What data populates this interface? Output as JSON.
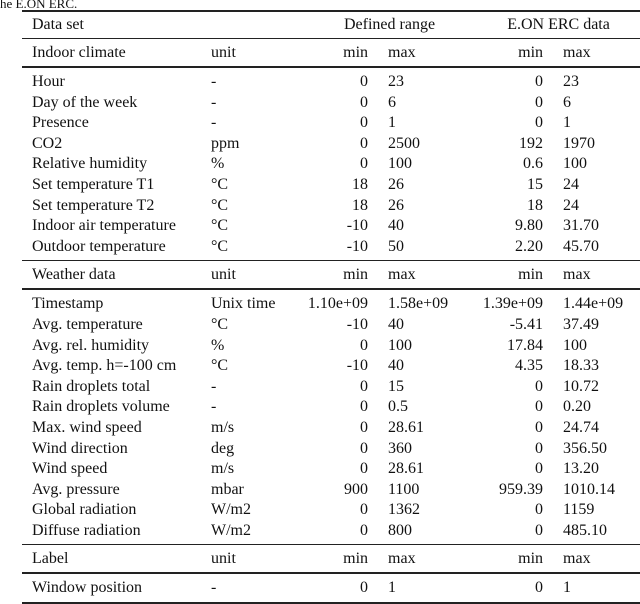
{
  "caption": "he E.ON ERC.",
  "header": {
    "data_set": "Data set",
    "defined_range": "Defined range",
    "eon_data": "E.ON ERC data"
  },
  "sections": [
    {
      "title": "Indoor climate",
      "unit": "unit",
      "min": "min",
      "max": "max",
      "min2": "min",
      "max2": "max",
      "rows": [
        {
          "name": "Hour",
          "unit": "-",
          "min": "0",
          "max": "23",
          "min2": "0",
          "max2": "23"
        },
        {
          "name": "Day of the week",
          "unit": "-",
          "min": "0",
          "max": "6",
          "min2": "0",
          "max2": "6"
        },
        {
          "name": "Presence",
          "unit": "-",
          "min": "0",
          "max": "1",
          "min2": "0",
          "max2": "1"
        },
        {
          "name": "CO2",
          "unit": "ppm",
          "min": "0",
          "max": "2500",
          "min2": "192",
          "max2": "1970"
        },
        {
          "name": "Relative humidity",
          "unit": "%",
          "min": "0",
          "max": "100",
          "min2": "0.6",
          "max2": "100"
        },
        {
          "name": "Set temperature T1",
          "unit": "°C",
          "min": "18",
          "max": "26",
          "min2": "15",
          "max2": "24"
        },
        {
          "name": "Set temperature T2",
          "unit": "°C",
          "min": "18",
          "max": "26",
          "min2": "18",
          "max2": "24"
        },
        {
          "name": "Indoor air temperature",
          "unit": "°C",
          "min": "-10",
          "max": "40",
          "min2": "9.80",
          "max2": "31.70"
        },
        {
          "name": "Outdoor temperature",
          "unit": "°C",
          "min": "-10",
          "max": "50",
          "min2": "2.20",
          "max2": "45.70"
        }
      ]
    },
    {
      "title": "Weather data",
      "unit": "unit",
      "min": "min",
      "max": "max",
      "min2": "min",
      "max2": "max",
      "rows": [
        {
          "name": "Timestamp",
          "unit": "Unix time",
          "min": "1.10e+09",
          "max": "1.58e+09",
          "min2": "1.39e+09",
          "max2": "1.44e+09"
        },
        {
          "name": "Avg. temperature",
          "unit": "°C",
          "min": "-10",
          "max": "40",
          "min2": "-5.41",
          "max2": "37.49"
        },
        {
          "name": "Avg. rel. humidity",
          "unit": "%",
          "min": "0",
          "max": "100",
          "min2": "17.84",
          "max2": "100"
        },
        {
          "name": "Avg. temp. h=-100 cm",
          "unit": "°C",
          "min": "-10",
          "max": "40",
          "min2": "4.35",
          "max2": "18.33"
        },
        {
          "name": "Rain droplets total",
          "unit": "-",
          "min": "0",
          "max": "15",
          "min2": "0",
          "max2": "10.72"
        },
        {
          "name": "Rain droplets volume",
          "unit": "-",
          "min": "0",
          "max": "0.5",
          "min2": "0",
          "max2": "0.20"
        },
        {
          "name": "Max. wind speed",
          "unit": "m/s",
          "min": "0",
          "max": "28.61",
          "min2": "0",
          "max2": "24.74"
        },
        {
          "name": "Wind direction",
          "unit": "deg",
          "min": "0",
          "max": "360",
          "min2": "0",
          "max2": "356.50"
        },
        {
          "name": "Wind speed",
          "unit": "m/s",
          "min": "0",
          "max": "28.61",
          "min2": "0",
          "max2": "13.20"
        },
        {
          "name": "Avg. pressure",
          "unit": "mbar",
          "min": "900",
          "max": "1100",
          "min2": "959.39",
          "max2": "1010.14"
        },
        {
          "name": "Global radiation",
          "unit": "W/m2",
          "min": "0",
          "max": "1362",
          "min2": "0",
          "max2": "1159"
        },
        {
          "name": "Diffuse radiation",
          "unit": "W/m2",
          "min": "0",
          "max": "800",
          "min2": "0",
          "max2": "485.10"
        }
      ]
    },
    {
      "title": "Label",
      "unit": "unit",
      "min": "min",
      "max": "max",
      "min2": "min",
      "max2": "max",
      "rows": [
        {
          "name": "Window position",
          "unit": "-",
          "min": "0",
          "max": "1",
          "min2": "0",
          "max2": "1"
        }
      ]
    }
  ]
}
